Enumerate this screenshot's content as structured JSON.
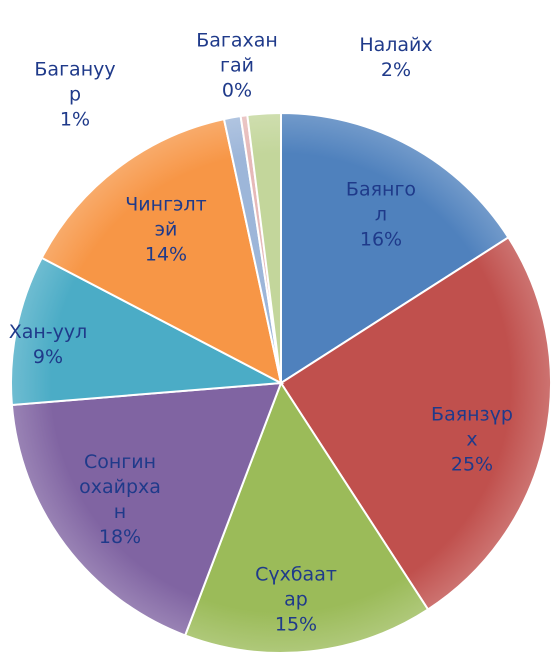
{
  "chart_data": {
    "type": "pie",
    "categories": [
      "Баянгол",
      "Баянзүрх",
      "Сүхбаатар",
      "Сонгинохайрхан",
      "Хан-уул",
      "Чингэлтэй",
      "Багануур",
      "Багахангай",
      "Налайх"
    ],
    "values": [
      16,
      25,
      15,
      18,
      9,
      14,
      1,
      0.4,
      2
    ],
    "value_labels": [
      "16%",
      "25%",
      "15%",
      "18%",
      "9%",
      "14%",
      "1%",
      "0%",
      "2%"
    ],
    "colors": [
      "#4f81bd",
      "#c0504d",
      "#9bbb59",
      "#8064a2",
      "#4bacc6",
      "#f79646",
      "#9db6d9",
      "#e6b9b8",
      "#c3d69b"
    ]
  }
}
